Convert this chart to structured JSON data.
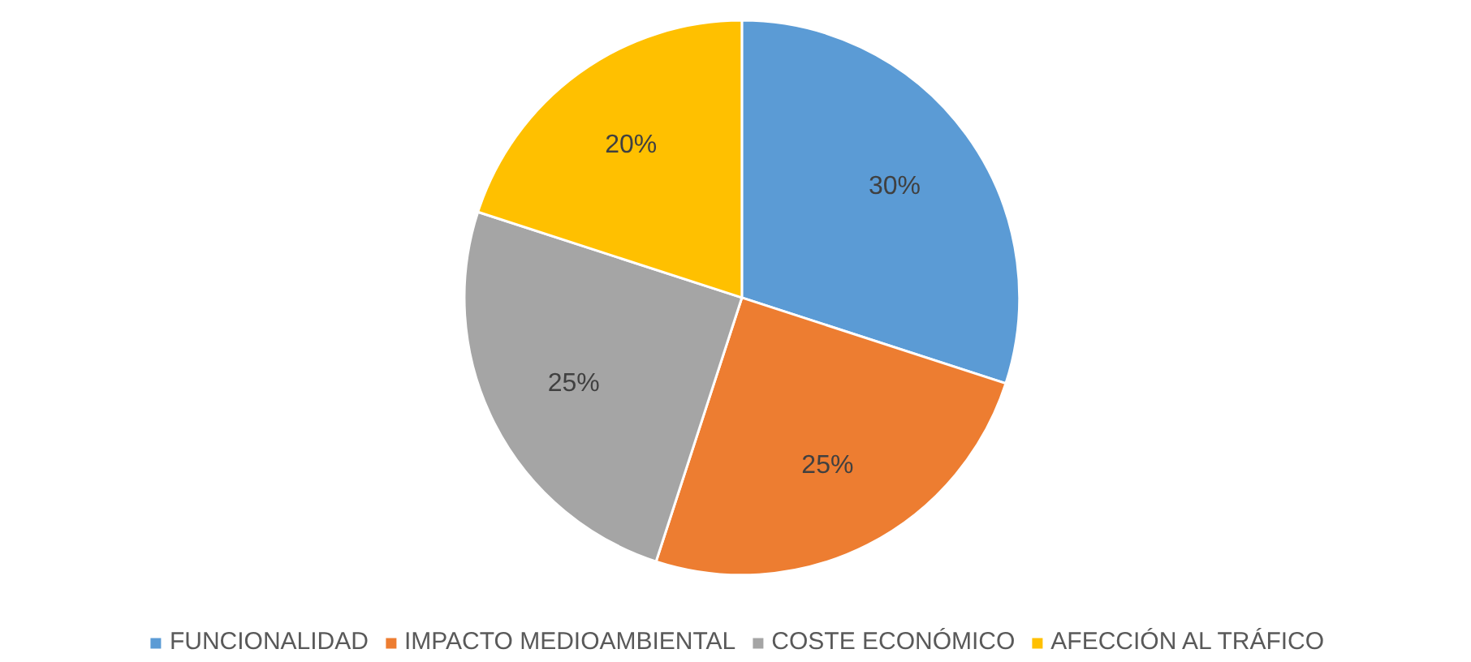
{
  "chart_data": {
    "type": "pie",
    "categories": [
      "FUNCIONALIDAD",
      "IMPACTO MEDIOAMBIENTAL",
      "COSTE ECONÓMICO",
      "AFECCIÓN AL TRÁFICO"
    ],
    "values": [
      30,
      25,
      25,
      20
    ],
    "colors": [
      "#5b9bd5",
      "#ed7d31",
      "#a5a5a5",
      "#ffc000"
    ],
    "value_labels": [
      "30%",
      "25%",
      "25%",
      "20%"
    ],
    "legend": "bottom"
  }
}
